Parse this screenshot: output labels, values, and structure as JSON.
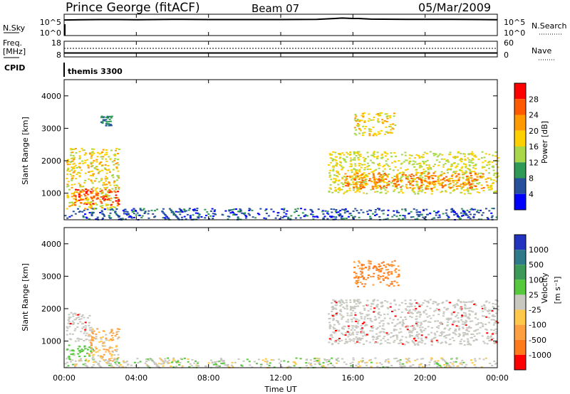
{
  "header": {
    "radar": "Prince George (fitACF)",
    "beam": "Beam 07",
    "date": "05/Mar/2009"
  },
  "top_panel": {
    "left_label": "N.Sky",
    "left_ticks": [
      "10^5",
      "10^0"
    ],
    "right_label": "N.Search",
    "right_ticks": [
      "10^5",
      "10^0"
    ]
  },
  "freq_panel": {
    "left_label_1": "Freq.",
    "left_label_2": "[MHz]",
    "left_ticks": [
      "18",
      "8"
    ],
    "right_label": "Nave",
    "right_ticks": [
      "60",
      "0"
    ]
  },
  "cpid": {
    "label": "CPID",
    "value": "themis 3300"
  },
  "x_axis": {
    "label": "Time UT",
    "ticks": [
      "00:00",
      "04:00",
      "08:00",
      "12:00",
      "16:00",
      "20:00",
      "00:00"
    ]
  },
  "colorbars": {
    "power": {
      "label": "Power [dB]",
      "ticks": [
        "28",
        "24",
        "20",
        "16",
        "12",
        "8",
        "4"
      ],
      "colors": [
        "#ff0000",
        "#ff5a00",
        "#ff9b00",
        "#ffd000",
        "#a8d84a",
        "#2f9a55",
        "#26509c",
        "#0000ff"
      ]
    },
    "velocity": {
      "label": "Velocity",
      "unit": "[m s⁻¹]",
      "ticks": [
        "1000",
        "500",
        "100",
        "25",
        "-25",
        "-100",
        "-500",
        "-1000"
      ],
      "colors": [
        "#2233c0",
        "#2f7a8a",
        "#3c9a58",
        "#55c83c",
        "#c8c8c0",
        "#ffc84a",
        "#ffa040",
        "#ff7a1a",
        "#ff0000"
      ]
    }
  },
  "chart_data": [
    {
      "type": "line",
      "title": "",
      "x_unit": "hours UT",
      "xlim": [
        0,
        24
      ],
      "series": [
        {
          "x": [
            0,
            1,
            2,
            3,
            4,
            6,
            8,
            10,
            12,
            14,
            15,
            15.4,
            16,
            16.3,
            17,
            19,
            21,
            23,
            24
          ],
          "values": [
            0.73,
            0.74,
            0.75,
            0.75,
            0.74,
            0.76,
            0.75,
            0.75,
            0.75,
            0.76,
            0.8,
            0.82,
            0.8,
            0.8,
            0.77,
            0.76,
            0.76,
            0.75,
            0.74
          ]
        }
      ]
    },
    {
      "type": "line",
      "x_unit": "hours UT",
      "xlim": [
        0,
        24
      ],
      "series": [
        {
          "x": [
            0,
            24
          ],
          "values": [
            10.5,
            10.5
          ]
        }
      ]
    },
    {
      "type": "heatmap",
      "ylabel": "Slant Range [km]",
      "xlabel": "Time UT",
      "xlim": [
        0,
        24
      ],
      "ylim": [
        180,
        4500
      ],
      "yticks": [
        "4000",
        "3000",
        "2000",
        "1000"
      ],
      "zlabel": "Power [dB]",
      "regions": [
        {
          "t": [
            0.1,
            3.0
          ],
          "r": [
            500,
            2400
          ],
          "level": 18
        },
        {
          "t": [
            0.5,
            3.0
          ],
          "r": [
            650,
            1150
          ],
          "level": 28
        },
        {
          "t": [
            2.0,
            2.6
          ],
          "r": [
            3100,
            3400
          ],
          "level": 8
        },
        {
          "t": [
            14.6,
            24.0
          ],
          "r": [
            1000,
            2300
          ],
          "level": 16
        },
        {
          "t": [
            15.5,
            23.5
          ],
          "r": [
            1150,
            1650
          ],
          "level": 24
        },
        {
          "t": [
            16.0,
            18.3
          ],
          "r": [
            2800,
            3500
          ],
          "level": 18
        },
        {
          "t": [
            0.0,
            24.0
          ],
          "r": [
            200,
            550
          ],
          "level": 6
        }
      ]
    },
    {
      "type": "heatmap",
      "ylabel": "Slant Range [km]",
      "xlabel": "Time UT",
      "xlim": [
        0,
        24
      ],
      "ylim": [
        180,
        4500
      ],
      "yticks": [
        "4000",
        "3000",
        "2000",
        "1000"
      ],
      "zlabel": "Velocity [m s⁻¹]",
      "regions": [
        {
          "t": [
            0.1,
            1.6
          ],
          "r": [
            500,
            900
          ],
          "level": 80
        },
        {
          "t": [
            0.1,
            1.5
          ],
          "r": [
            1000,
            1900
          ],
          "level": 0
        },
        {
          "t": [
            1.3,
            3.0
          ],
          "r": [
            400,
            1400
          ],
          "level": -300
        },
        {
          "t": [
            14.6,
            24.0
          ],
          "r": [
            900,
            2300
          ],
          "level": 0
        },
        {
          "t": [
            16.0,
            18.5
          ],
          "r": [
            2700,
            3500
          ],
          "level": -500
        },
        {
          "t": [
            0.0,
            24.0
          ],
          "r": [
            200,
            500
          ],
          "level": 20
        }
      ]
    }
  ]
}
